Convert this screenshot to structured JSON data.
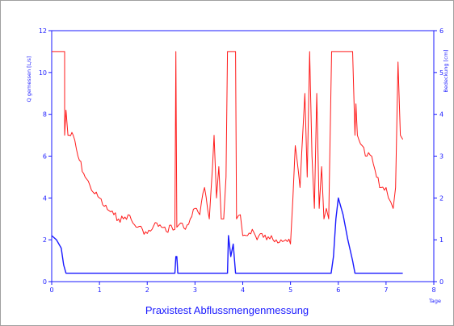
{
  "chart_data": {
    "type": "line",
    "title": "Praxistest Abflussmengenmessung",
    "xlabel": "Tage",
    "ylabel_left": "Q gemessen [L/s]",
    "ylabel_right": "Bedeckung [cm]",
    "xlim": [
      0,
      8
    ],
    "ylim_left": [
      0,
      12
    ],
    "ylim_right": [
      0,
      6
    ],
    "x_ticks": [
      "0",
      "1",
      "2",
      "3",
      "4",
      "5",
      "6",
      "7",
      "8"
    ],
    "y_ticks_left": [
      "0",
      "2",
      "4",
      "6",
      "8",
      "10",
      "12"
    ],
    "y_ticks_right": [
      "0",
      "1",
      "2",
      "3",
      "4",
      "5",
      "6"
    ],
    "grid": false,
    "colors": {
      "flow": "#ff1a1a",
      "cover": "#1a1aff",
      "axis": "#1a1aff"
    },
    "series": [
      {
        "axis": "left",
        "x": [
          0.0,
          0.27,
          0.27,
          0.3,
          0.34,
          0.45,
          0.55,
          0.7,
          0.8,
          0.9,
          1.0,
          1.1,
          1.2,
          1.3,
          1.4,
          1.5,
          1.6,
          1.7,
          1.8,
          1.9,
          2.0,
          2.1,
          2.2,
          2.3,
          2.4,
          2.5,
          2.58,
          2.6,
          2.62,
          2.7,
          2.8,
          2.9,
          3.0,
          3.1,
          3.2,
          3.3,
          3.4,
          3.45,
          3.5,
          3.55,
          3.6,
          3.65,
          3.68,
          3.85,
          3.87,
          3.95,
          4.0,
          4.1,
          4.2,
          4.3,
          4.4,
          4.5,
          4.6,
          4.7,
          4.8,
          4.9,
          5.0,
          5.05,
          5.1,
          5.2,
          5.3,
          5.35,
          5.4,
          5.45,
          5.5,
          5.55,
          5.6,
          5.65,
          5.7,
          5.75,
          5.8,
          5.86,
          5.9,
          6.3,
          6.35,
          6.37,
          6.4,
          6.5,
          6.6,
          6.7,
          6.8,
          6.9,
          7.0,
          7.05,
          7.1,
          7.15,
          7.2,
          7.25,
          7.3,
          7.35
        ],
        "y": [
          11.0,
          11.0,
          7.0,
          8.2,
          7.0,
          7.0,
          6.0,
          5.0,
          4.6,
          4.2,
          4.0,
          3.6,
          3.4,
          3.2,
          3.0,
          3.0,
          3.2,
          2.8,
          2.6,
          2.5,
          2.3,
          2.5,
          2.8,
          2.6,
          2.4,
          2.7,
          2.5,
          11.0,
          2.6,
          2.8,
          2.5,
          3.0,
          3.5,
          3.2,
          4.5,
          3.0,
          7.0,
          4.0,
          5.5,
          3.0,
          3.0,
          5.0,
          11.0,
          11.0,
          3.0,
          3.2,
          2.2,
          2.2,
          2.5,
          2.0,
          2.3,
          2.0,
          2.2,
          2.0,
          2.0,
          2.0,
          1.8,
          4.0,
          6.5,
          4.5,
          9.0,
          5.0,
          11.0,
          6.0,
          3.5,
          9.0,
          3.5,
          5.5,
          3.0,
          3.5,
          3.0,
          11.0,
          11.0,
          11.0,
          7.0,
          8.5,
          7.0,
          6.5,
          6.0,
          6.0,
          5.0,
          4.5,
          4.5,
          4.0,
          3.8,
          3.5,
          4.5,
          10.5,
          7.0,
          6.8
        ]
      },
      {
        "axis": "right",
        "x": [
          0.0,
          0.1,
          0.2,
          0.25,
          0.3,
          2.58,
          2.6,
          2.62,
          2.64,
          3.68,
          3.7,
          3.75,
          3.8,
          3.85,
          5.85,
          5.9,
          5.95,
          6.0,
          6.1,
          6.2,
          6.3,
          6.35,
          7.35
        ],
        "y": [
          1.1,
          1.0,
          0.8,
          0.4,
          0.2,
          0.2,
          0.6,
          0.6,
          0.2,
          0.2,
          1.1,
          0.6,
          0.9,
          0.2,
          0.2,
          0.6,
          1.5,
          2.0,
          1.6,
          1.0,
          0.5,
          0.2,
          0.2
        ]
      }
    ]
  }
}
